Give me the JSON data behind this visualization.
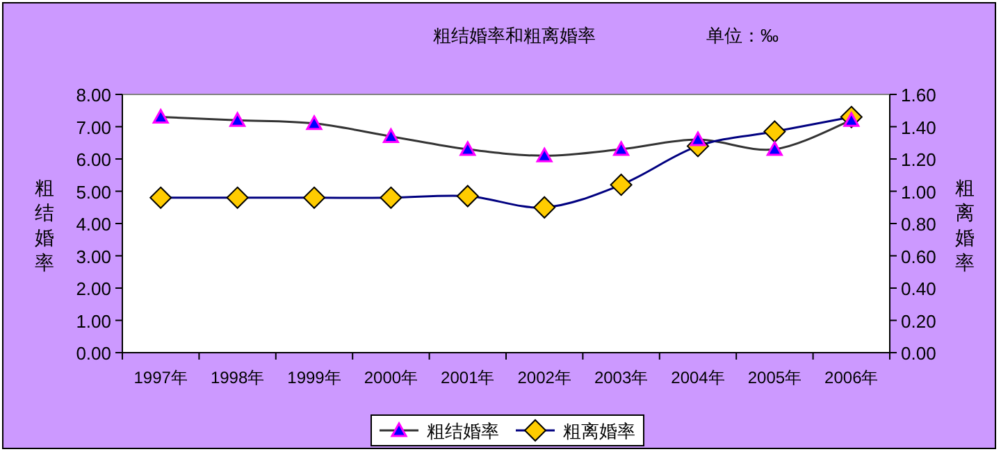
{
  "chart_data": {
    "type": "line",
    "title": "粗结婚率和粗离婚率",
    "subtitle": "单位：‰",
    "ylabel": "粗结婚率",
    "y2label": "粗离婚率",
    "categories": [
      "1997年",
      "1998年",
      "1999年",
      "2000年",
      "2001年",
      "2002年",
      "2003年",
      "2004年",
      "2005年",
      "2006年"
    ],
    "series": [
      {
        "name": "粗结婚率",
        "color": "#333333",
        "marker": "triangle",
        "values": [
          7.3,
          7.2,
          7.1,
          6.7,
          6.3,
          6.1,
          6.3,
          6.6,
          6.3,
          7.2
        ]
      },
      {
        "name": "粗离婚率",
        "color": "#000080",
        "marker": "diamond",
        "axis": "y2",
        "values": [
          0.96,
          0.96,
          0.96,
          0.96,
          0.97,
          0.9,
          1.04,
          1.28,
          1.37,
          1.46
        ]
      }
    ],
    "ylim": [
      0,
      8
    ],
    "yticks": [
      {
        "value": 0,
        "label": "0.00"
      },
      {
        "value": 1,
        "label": "1.00"
      },
      {
        "value": 2,
        "label": "2.00"
      },
      {
        "value": 3,
        "label": "3.00"
      },
      {
        "value": 4,
        "label": "4.00"
      },
      {
        "value": 5,
        "label": "5.00"
      },
      {
        "value": 6,
        "label": "6.00"
      },
      {
        "value": 7,
        "label": "7.00"
      },
      {
        "value": 8,
        "label": "8.00"
      }
    ],
    "y2lim": [
      0,
      1.6
    ],
    "y2ticks": [
      {
        "value": 0,
        "label": "0.00"
      },
      {
        "value": 0.2,
        "label": "0.20"
      },
      {
        "value": 0.4,
        "label": "0.40"
      },
      {
        "value": 0.6,
        "label": "0.60"
      },
      {
        "value": 0.8,
        "label": "0.80"
      },
      {
        "value": 1,
        "label": "1.00"
      },
      {
        "value": 1.2,
        "label": "1.20"
      },
      {
        "value": 1.4,
        "label": "1.40"
      },
      {
        "value": 1.6,
        "label": "1.60"
      }
    ],
    "legend": "bottom"
  }
}
